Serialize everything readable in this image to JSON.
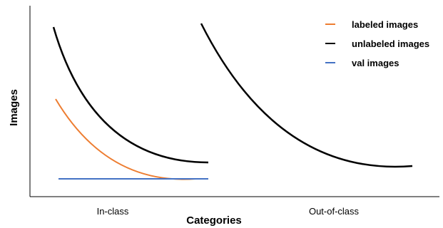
{
  "chart_data": {
    "type": "line",
    "title": "",
    "xlabel": "Categories",
    "ylabel": "Images",
    "categories": [
      "In-class",
      "Out-of-class"
    ],
    "grid": false,
    "ticks_shown": false,
    "legend_position": "top-right",
    "series": [
      {
        "name": "labeled images",
        "color": "#ED7D31",
        "shape": "decreasing convex curve",
        "category": "In-class"
      },
      {
        "name": "unlabeled images",
        "color": "#000000",
        "shape": "decreasing convex curves",
        "category": "In-class and Out-of-class"
      },
      {
        "name": "val images",
        "color": "#4472C4",
        "shape": "constant horizontal line",
        "category": "In-class"
      }
    ]
  }
}
